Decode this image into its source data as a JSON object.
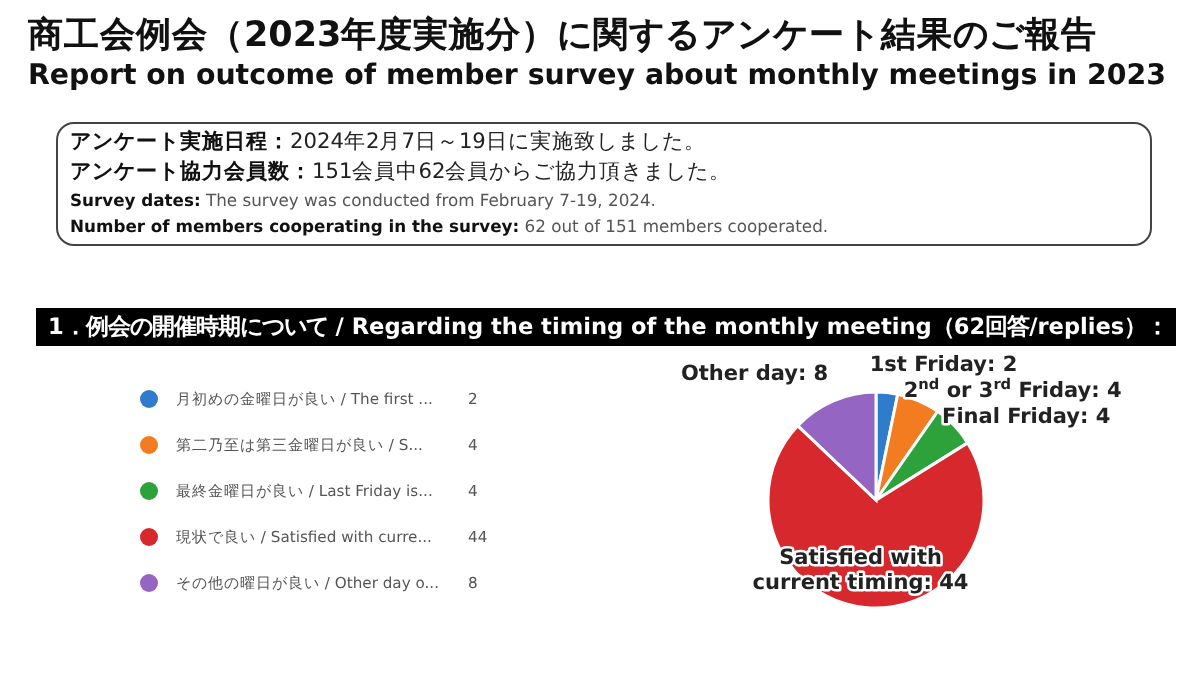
{
  "chart_data": {
    "type": "pie",
    "title": "商工会例会（2023年度実施分）に関するアンケート結果のご報告",
    "subtitle": "Report on outcome of member survey about monthly meetings in 2023",
    "annotations": [
      "アンケート実施日程：2024年2月7日～19日に実施致しました。",
      "アンケート協力会員数：151会員中62会員からご協力頂きました。",
      "Survey dates: The survey was conducted from February 7-19, 2024.",
      "Number of members cooperating in the survey: 62 out of 151 members cooperated.",
      "1．例会の開催時期について / Regarding the timing of the monthly meeting（62回答/replies）：",
      {
        "text": "2",
        "x": "月初めの金曜日が良い / The first ..."
      },
      {
        "text": "4",
        "x": "第二乃至は第三金曜日が良い / S..."
      },
      {
        "text": "4",
        "x": "最終金曜日が良い / Last Friday is..."
      },
      {
        "text": "44",
        "x": "現状で良い / Satisfied with curre..."
      },
      {
        "text": "8",
        "x": "その他の曜日が良い / Other day o..."
      }
    ],
    "categories": [
      "月初めの金曜日が良い / The first ...",
      "第二乃至は第三金曜日が良い / S...",
      "最終金曜日が良い / Last Friday is...",
      "現状で良い / Satisfied with curre...",
      "その他の曜日が良い / Other day o..."
    ],
    "values": [
      2,
      4,
      4,
      44,
      8
    ],
    "colors": [
      "#2f7ccc",
      "#f37c21",
      "#2ea23a",
      "#d7282d",
      "#9565c4"
    ],
    "value_labels": [
      "1st Friday: 2",
      "2$^{nd}$ or 3$^{rd}$ Friday: 4",
      "Final Friday: 4",
      "Satisfied with current timing: 44",
      "Other day: 8"
    ],
    "legend": "left"
  }
}
